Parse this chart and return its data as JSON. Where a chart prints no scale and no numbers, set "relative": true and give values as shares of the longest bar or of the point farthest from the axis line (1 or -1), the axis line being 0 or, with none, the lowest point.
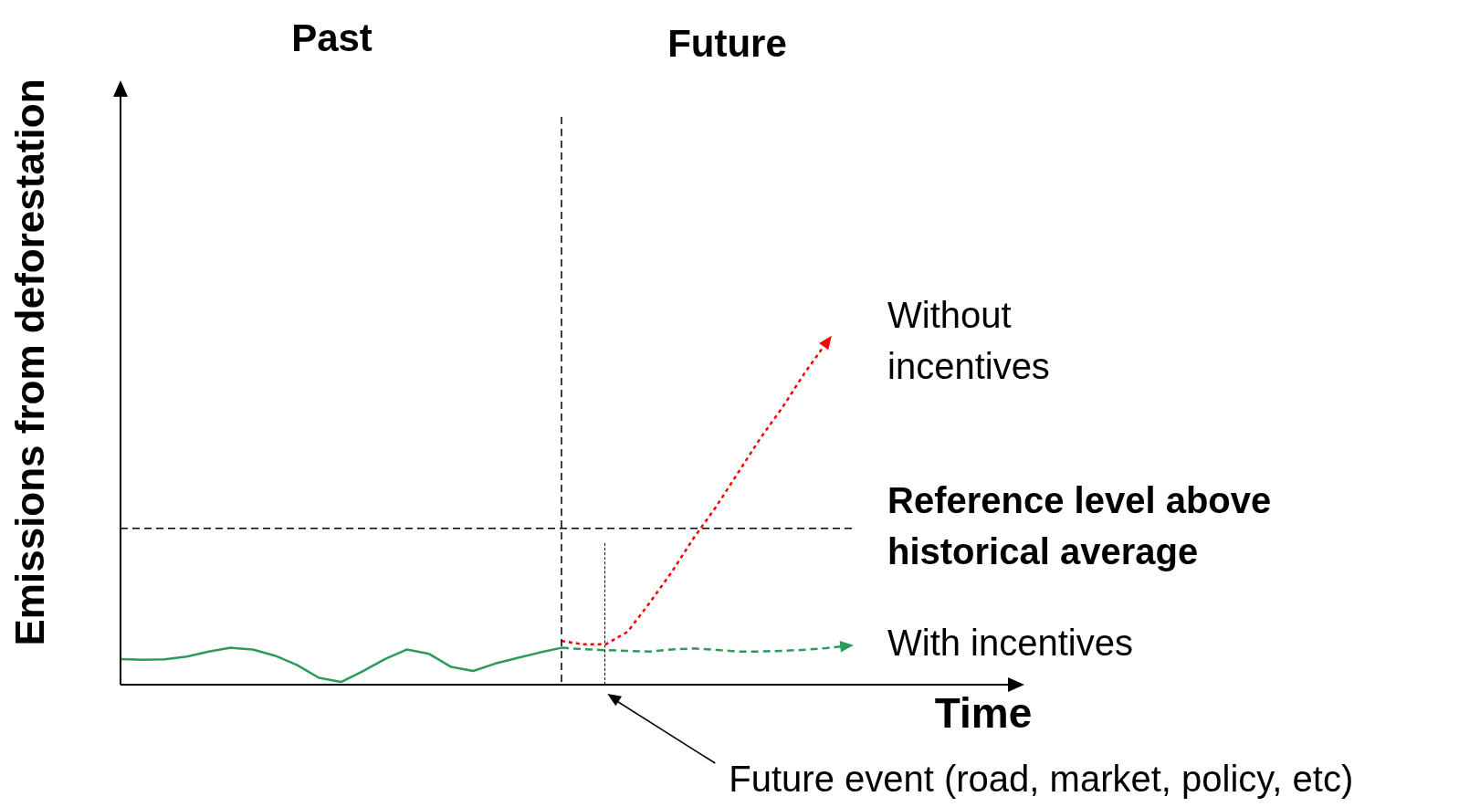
{
  "chart_data": {
    "type": "line",
    "relative": true,
    "xlabel": "Time",
    "ylabel": "Emissions from deforestation",
    "categories": [
      null,
      null,
      null,
      null,
      null,
      null,
      null,
      null,
      null,
      null,
      null,
      null,
      null,
      null,
      null,
      null,
      null,
      null,
      null,
      null,
      null,
      null,
      null,
      null,
      null,
      null,
      null,
      null,
      null,
      null,
      null,
      null,
      null,
      null,
      null,
      null,
      null,
      null,
      null,
      null,
      null
    ],
    "annotations": [
      "Past",
      "Future",
      "Future event (road, market, policy, etc)"
    ],
    "series": [
      {
        "color": "#2e9a5c",
        "line_style": "solid",
        "values": [
          0.075,
          0.073,
          0.074,
          0.082,
          0.097,
          0.108,
          0.103,
          0.085,
          0.058,
          0.02,
          0.008,
          0.04,
          0.075,
          0.103,
          0.09,
          0.052,
          0.04,
          0.062,
          0.078,
          0.094,
          0.108,
          null,
          null,
          null,
          null,
          null,
          null,
          null,
          null,
          null,
          null,
          null,
          null,
          null,
          null,
          null,
          null,
          null,
          null,
          null,
          null
        ]
      },
      {
        "name": "With incentives",
        "color": "#2e9a5c",
        "line_style": "dashed",
        "values": [
          null,
          null,
          null,
          null,
          null,
          null,
          null,
          null,
          null,
          null,
          null,
          null,
          null,
          null,
          null,
          null,
          null,
          null,
          null,
          null,
          0.108,
          0.104,
          0.101,
          0.099,
          0.097,
          0.103,
          0.106,
          0.102,
          0.097,
          0.097,
          0.099,
          0.102,
          0.107,
          0.114,
          null,
          null,
          null,
          null,
          null,
          null,
          null
        ]
      },
      {
        "name": "Without incentives",
        "color": "#ff0000",
        "line_style": "dotted",
        "values": [
          null,
          null,
          null,
          null,
          null,
          null,
          null,
          null,
          null,
          null,
          null,
          null,
          null,
          null,
          null,
          null,
          null,
          null,
          null,
          null,
          0.128,
          0.118,
          0.118,
          0.155,
          0.24,
          0.33,
          0.43,
          0.52,
          0.62,
          0.72,
          0.81,
          0.91,
          1,
          null,
          null,
          null,
          null,
          null,
          null,
          null,
          null
        ]
      }
    ],
    "ref_lines": [
      {
        "axis": "y",
        "value": 0.458,
        "line_style": "dashed",
        "color": "#000000",
        "label": "Reference level above historical average"
      }
    ]
  }
}
